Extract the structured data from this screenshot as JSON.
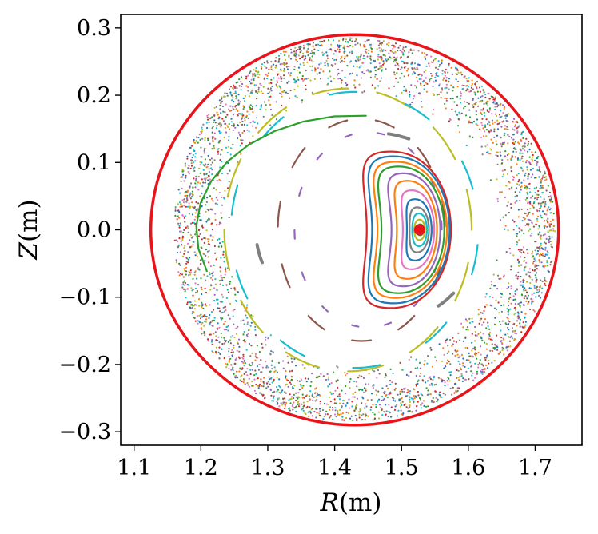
{
  "chart_data": {
    "type": "scatter",
    "title": "",
    "xlabel": {
      "var": "R",
      "unit": "(m)"
    },
    "ylabel": {
      "var": "Z",
      "unit": "(m)"
    },
    "xlim": [
      1.08,
      1.77
    ],
    "ylim": [
      -0.32,
      0.32
    ],
    "xticks": [
      1.1,
      1.2,
      1.3,
      1.4,
      1.5,
      1.6,
      1.7
    ],
    "xtick_labels": [
      "1.1",
      "1.2",
      "1.3",
      "1.4",
      "1.5",
      "1.6",
      "1.7"
    ],
    "yticks": [
      0.3,
      0.2,
      0.1,
      0.0,
      -0.1,
      -0.2,
      -0.3
    ],
    "ytick_labels": [
      "0.3",
      "0.2",
      "0.1",
      "0.0",
      "−0.1",
      "−0.2",
      "−0.3"
    ],
    "colors": {
      "boundary": "#e8141a",
      "axis": "#e8141a",
      "palette": [
        "#1f77b4",
        "#ff7f0e",
        "#2ca02c",
        "#d62728",
        "#9467bd",
        "#8c564b",
        "#e377c2",
        "#7f7f7f",
        "#bcbd22",
        "#17becf"
      ]
    },
    "boundary": {
      "name": "last closed flux surface",
      "center": [
        1.43,
        0.0
      ],
      "half_width": 0.293,
      "half_height": 0.29,
      "outboard_shift": 0.012
    },
    "magnetic_axis": {
      "R": 1.527,
      "Z": 0.0
    },
    "nested_surfaces": [
      {
        "color_index": 3,
        "inner_R": 1.363,
        "outer_R": 1.574,
        "half_height": 0.115,
        "indent": 0.085
      },
      {
        "color_index": 0,
        "inner_R": 1.376,
        "outer_R": 1.572,
        "half_height": 0.108,
        "indent": 0.08
      },
      {
        "color_index": 1,
        "inner_R": 1.39,
        "outer_R": 1.568,
        "half_height": 0.1,
        "indent": 0.074
      },
      {
        "color_index": 2,
        "inner_R": 1.404,
        "outer_R": 1.564,
        "half_height": 0.093,
        "indent": 0.066
      },
      {
        "color_index": 4,
        "inner_R": 1.43,
        "outer_R": 1.558,
        "half_height": 0.083,
        "indent": 0.055
      },
      {
        "color_index": 1,
        "inner_R": 1.45,
        "outer_R": 1.553,
        "half_height": 0.072,
        "indent": 0.043
      },
      {
        "color_index": 6,
        "inner_R": 1.47,
        "outer_R": 1.549,
        "half_height": 0.058,
        "indent": 0.032
      },
      {
        "color_index": 0,
        "inner_R": 1.487,
        "outer_R": 1.545,
        "half_height": 0.045,
        "indent": 0.021
      },
      {
        "color_index": 7,
        "inner_R": 1.5,
        "outer_R": 1.541,
        "half_height": 0.033,
        "indent": 0.012
      },
      {
        "color_index": 9,
        "inner_R": 1.51,
        "outer_R": 1.538,
        "half_height": 0.024,
        "indent": 0.006
      },
      {
        "color_index": 8,
        "inner_R": 1.516,
        "outer_R": 1.535,
        "half_height": 0.015,
        "indent": 0.003
      },
      {
        "color_index": 2,
        "inner_R": 1.521,
        "outer_R": 1.533,
        "half_height": 0.008,
        "indent": 0.001
      }
    ],
    "island_chains": [
      {
        "color_index": 8,
        "center": [
          1.42,
          0.0
        ],
        "a": 0.185,
        "b": 0.21,
        "segments": 12,
        "duty": 0.55
      },
      {
        "color_index": 9,
        "center": [
          1.43,
          0.0
        ],
        "a": 0.185,
        "b": 0.205,
        "segments": 10,
        "duty": 0.35
      },
      {
        "color_index": 5,
        "center": [
          1.44,
          0.0
        ],
        "a": 0.125,
        "b": 0.165,
        "segments": 11,
        "duty": 0.4
      },
      {
        "color_index": 4,
        "center": [
          1.45,
          0.0
        ],
        "a": 0.11,
        "b": 0.145,
        "segments": 14,
        "duty": 0.2
      },
      {
        "color_index": 7,
        "center": [
          1.45,
          0.0
        ],
        "a": 0.168,
        "b": 0.145,
        "segments": 3,
        "duty": 0.09
      },
      {
        "color_index": 2,
        "center": [
          1.43,
          0.0
        ],
        "a": 0.237,
        "b": 0.17,
        "segments": 1,
        "duty": 0.32
      }
    ],
    "chaotic_sea": {
      "R_inner": 0.2,
      "R_outer": 0.285,
      "points": 3600,
      "marker": "dot"
    }
  }
}
